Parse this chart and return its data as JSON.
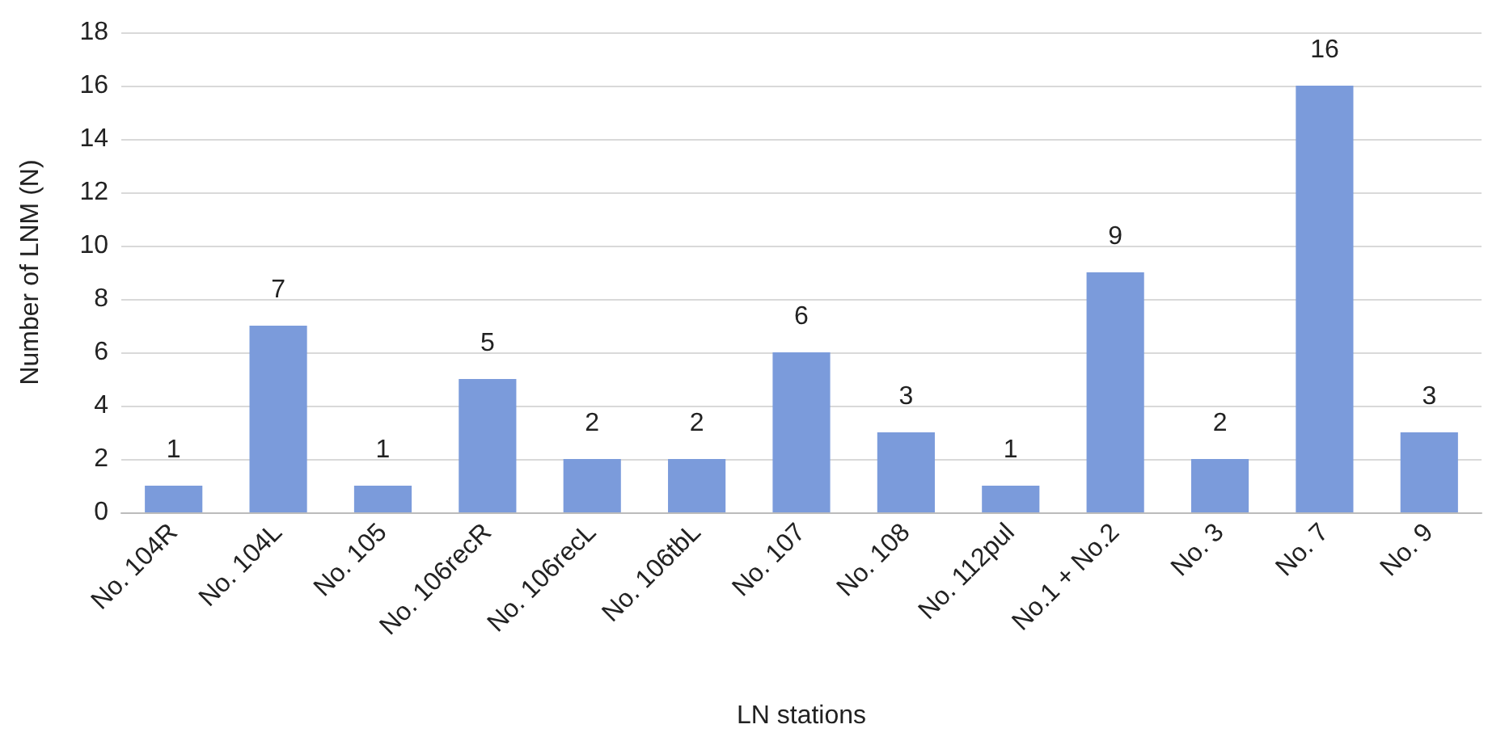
{
  "chart_data": {
    "type": "bar",
    "categories": [
      "No. 104R",
      "No. 104L",
      "No. 105",
      "No. 106recR",
      "No. 106recL",
      "No. 106tbL",
      "No. 107",
      "No. 108",
      "No. 112pul",
      "No.1 + No.2",
      "No. 3",
      "No. 7",
      "No. 9"
    ],
    "values": [
      1,
      7,
      1,
      5,
      2,
      2,
      6,
      3,
      1,
      9,
      2,
      16,
      3
    ],
    "data_labels": true,
    "color": "#7b9bdb",
    "xlabel": "LN stations",
    "ylabel": "Number of LNM (N)",
    "ylim": [
      0,
      18
    ],
    "yticks": [
      0,
      2,
      4,
      6,
      8,
      10,
      12,
      14,
      16,
      18
    ],
    "grid": "y"
  }
}
